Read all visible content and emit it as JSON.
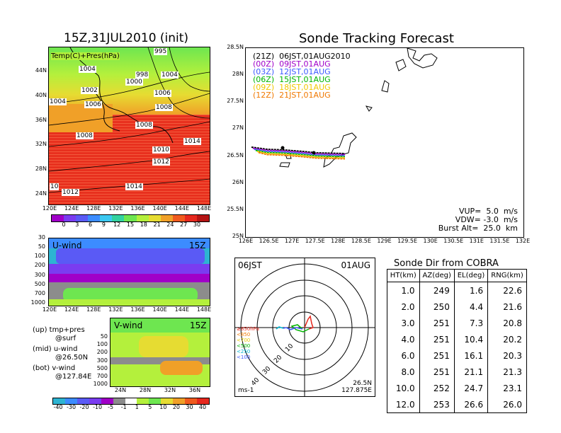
{
  "init_title": "15Z,31JUL2010 (init)",
  "forecast_title": "Sonde Tracking Forecast",
  "surface_map": {
    "label": "Temp(C)+Pres(hPa)",
    "lat_ticks": [
      "44N",
      "40N",
      "36N",
      "32N",
      "28N",
      "24N"
    ],
    "lon_ticks": [
      "120E",
      "124E",
      "128E",
      "132E",
      "136E",
      "140E",
      "144E",
      "148E"
    ],
    "isobars": [
      "995",
      "1004",
      "998",
      "1004",
      "1000",
      "1002",
      "1006",
      "1004",
      "1006",
      "1008",
      "1008",
      "1008",
      "1014",
      "1010",
      "1012",
      "1014",
      "1012",
      "10"
    ],
    "colorbar_ticks": [
      "0",
      "3",
      "6",
      "9",
      "12",
      "15",
      "18",
      "21",
      "24",
      "27",
      "30"
    ],
    "colorbar_colors": [
      "#a000c8",
      "#7a3cf0",
      "#5a5af5",
      "#3c8cff",
      "#3cc8f0",
      "#32d2a0",
      "#6ee650",
      "#b4f03c",
      "#e6dc32",
      "#f0a028",
      "#f05a1e",
      "#e6281e",
      "#b41414"
    ]
  },
  "u_wind": {
    "label": "U-wind",
    "time": "15Z",
    "p_ticks": [
      "30",
      "50",
      "100",
      "200",
      "300",
      "500",
      "700",
      "1000"
    ],
    "lon_ticks": [
      "120E",
      "124E",
      "128E",
      "132E",
      "136E",
      "140E",
      "144E",
      "148E"
    ]
  },
  "v_wind": {
    "label": "V-wind",
    "time": "15Z",
    "p_ticks": [
      "50",
      "100",
      "200",
      "300",
      "500",
      "700",
      "1000"
    ],
    "lat_ticks": [
      "24N",
      "28N",
      "32N",
      "36N"
    ],
    "colorbar_ticks": [
      "-40",
      "-30",
      "-20",
      "-10",
      "-5",
      "-1",
      "1",
      "5",
      "10",
      "20",
      "30",
      "40"
    ],
    "colorbar_colors": [
      "#2db4d2",
      "#3c8cff",
      "#5a5af5",
      "#7a3cf0",
      "#a000c8",
      "#8c8c8c",
      "#ffffff",
      "#b4f03c",
      "#6ee650",
      "#e6dc32",
      "#f0a028",
      "#f05a1e",
      "#e6281e"
    ]
  },
  "legend_notes": [
    {
      "a": "(up) tmp+pres",
      "b": "@surf"
    },
    {
      "a": "(mid) u-wind",
      "b": "@26.50N"
    },
    {
      "a": "(bot) v-wind",
      "b": "@127.84E"
    }
  ],
  "tracking": {
    "lat_ticks": [
      "28.5N",
      "28N",
      "27.5N",
      "27N",
      "26.5N",
      "26N",
      "25.5N",
      "25N"
    ],
    "lon_ticks": [
      "126E",
      "126.5E",
      "127E",
      "127.5E",
      "128E",
      "128.5E",
      "129E",
      "129.5E",
      "130E",
      "130.5E",
      "131E",
      "131.5E",
      "132E"
    ],
    "launch_entries": [
      {
        "text": "(21Z)  06JST,01AUG2010",
        "color": "#000000"
      },
      {
        "text": "(00Z)  09JST,01AUG",
        "color": "#a000c8"
      },
      {
        "text": "(03Z)  12JST,01AUG",
        "color": "#3c5aff"
      },
      {
        "text": "(06Z)  15JST,01AUG",
        "color": "#00b400"
      },
      {
        "text": "(09Z)  18JST,01AUG",
        "color": "#f0c800"
      },
      {
        "text": "(12Z)  21JST,01AUG",
        "color": "#f07800"
      }
    ],
    "params": [
      "VUP=  5.0  m/s",
      "VDW= -3.0  m/s",
      "Burst Alt=  25.0  km"
    ]
  },
  "polar": {
    "time": "06JST",
    "date": "01AUG",
    "ring_labels": [
      "10",
      "20",
      "30",
      "40"
    ],
    "height_legend": [
      {
        "text": "≥850hPa",
        "color": "#e6281e"
      },
      {
        "text": "<850",
        "color": "#f07800"
      },
      {
        "text": "<700",
        "color": "#e6c800"
      },
      {
        "text": "<500",
        "color": "#00b400"
      },
      {
        "text": "<250",
        "color": "#00b4d2"
      },
      {
        "text": "<100",
        "color": "#3c5aff"
      }
    ],
    "units": "ms-1",
    "loc1": "26.5N",
    "loc2": "127.875E"
  },
  "sonde_table": {
    "title": "Sonde Dir from COBRA",
    "headers": [
      "HT(km)",
      "AZ(deg)",
      "EL(deg)",
      "RNG(km)"
    ],
    "rows": [
      [
        "1.0",
        "249",
        "1.6",
        "22.6"
      ],
      [
        "2.0",
        "250",
        "4.4",
        "21.6"
      ],
      [
        "3.0",
        "251",
        "7.3",
        "20.8"
      ],
      [
        "4.0",
        "251",
        "10.4",
        "20.2"
      ],
      [
        "6.0",
        "251",
        "16.1",
        "20.3"
      ],
      [
        "8.0",
        "251",
        "21.1",
        "21.3"
      ],
      [
        "10.0",
        "252",
        "24.7",
        "23.1"
      ],
      [
        "12.0",
        "253",
        "26.6",
        "26.0"
      ]
    ]
  }
}
